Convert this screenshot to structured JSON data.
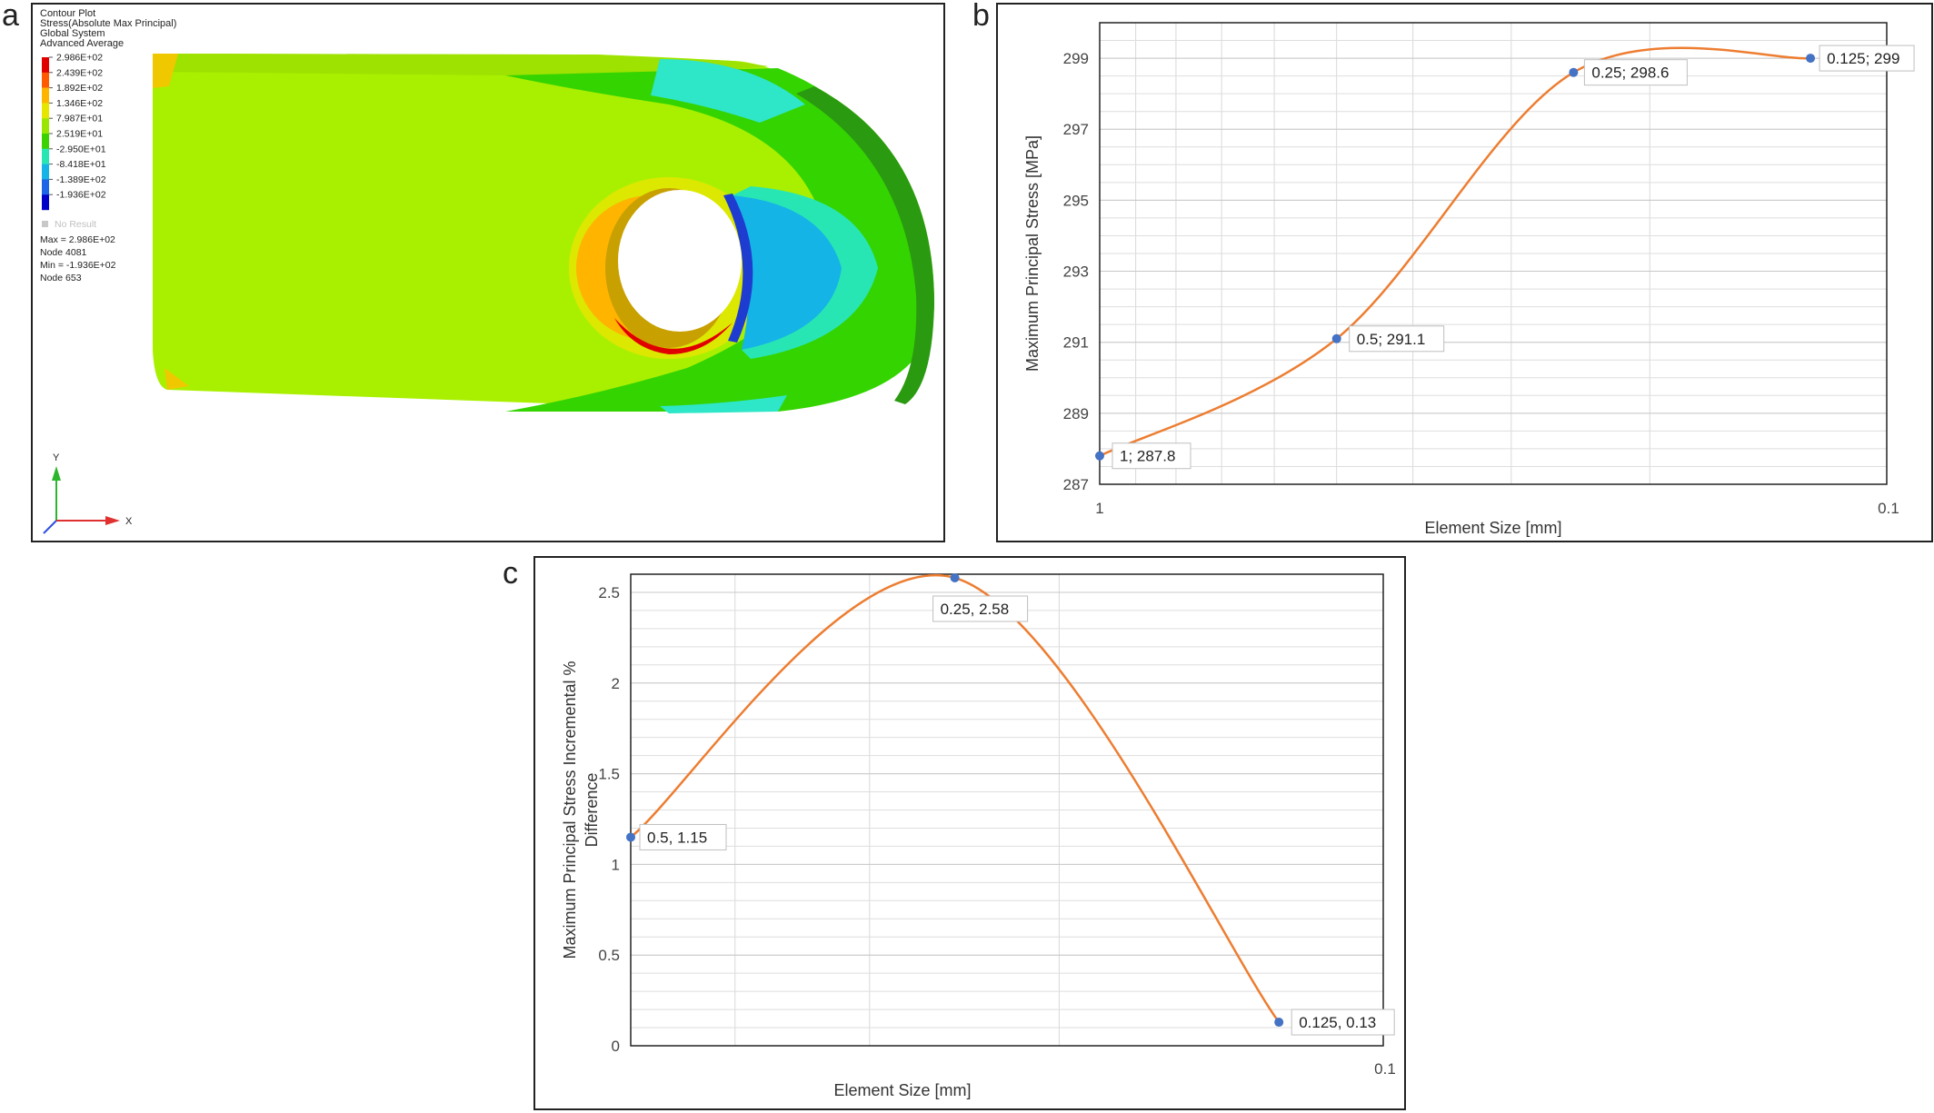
{
  "panels": {
    "a": {
      "letter": "a",
      "legend": {
        "header": [
          "Contour Plot",
          "Stress(Absolute Max Principal)",
          "Global System",
          "Advanced Average"
        ],
        "levels": [
          {
            "label": "2.986E+02",
            "color": "#e00000"
          },
          {
            "label": "2.439E+02",
            "color": "#ff5a00"
          },
          {
            "label": "1.892E+02",
            "color": "#ffb400"
          },
          {
            "label": "1.346E+02",
            "color": "#e6e600"
          },
          {
            "label": "7.987E+01",
            "color": "#9be600"
          },
          {
            "label": "2.519E+01",
            "color": "#3cd200"
          },
          {
            "label": "-2.950E+01",
            "color": "#28e6b4"
          },
          {
            "label": "-8.418E+01",
            "color": "#14b4e6"
          },
          {
            "label": "-1.389E+02",
            "color": "#1e64e6"
          },
          {
            "label": "-1.936E+02",
            "color": "#0000c8"
          }
        ],
        "no_result": "No Result",
        "footer": [
          "Max = 2.986E+02",
          "Node 4081",
          "Min = -1.936E+02",
          "Node 653"
        ]
      },
      "triad": {
        "y": "Y",
        "x": "X"
      }
    },
    "b": {
      "letter": "b"
    },
    "c": {
      "letter": "c"
    }
  },
  "chart_data": [
    {
      "panel": "b",
      "type": "line",
      "xlabel": "Element Size [mm]",
      "ylabel": "Maximum Principal Stress [MPa]",
      "x_scale": "log-reversed",
      "xlim": [
        1,
        0.1
      ],
      "ylim": [
        287,
        300
      ],
      "x_tick_labels": [
        "1",
        "0.1"
      ],
      "y_ticks": [
        287,
        289,
        291,
        293,
        295,
        297,
        299
      ],
      "grid": true,
      "series": [
        {
          "x": [
            1,
            0.5,
            0.25,
            0.125
          ],
          "y": [
            287.8,
            291.1,
            298.6,
            299
          ],
          "labels": [
            "1; 287.8",
            "0.5; 291.1",
            "0.25; 298.6",
            "0.125; 299"
          ]
        }
      ],
      "colors": {
        "line": "#ed7d31",
        "marker": "#4472c4"
      }
    },
    {
      "panel": "c",
      "type": "line",
      "xlabel": "Element Size [mm]",
      "ylabel_lines": [
        "Maximum Principal Stress Incremental %",
        "Difference"
      ],
      "x_scale": "log-reversed",
      "xlim": [
        0.5,
        0.1
      ],
      "ylim": [
        0,
        2.6
      ],
      "x_tick_labels": [
        "0.1"
      ],
      "y_ticks": [
        0,
        0.5,
        1,
        1.5,
        2,
        2.5
      ],
      "y_tick_labels": [
        "0",
        "0.5",
        "1",
        "1.5",
        "2",
        "2.5"
      ],
      "grid": true,
      "series": [
        {
          "x": [
            0.5,
            0.25,
            0.125
          ],
          "y": [
            1.15,
            2.58,
            0.13
          ],
          "labels": [
            "0.5, 1.15",
            "0.25, 2.58",
            "0.125, 0.13"
          ]
        }
      ],
      "colors": {
        "line": "#ed7d31",
        "marker": "#4472c4"
      }
    }
  ]
}
